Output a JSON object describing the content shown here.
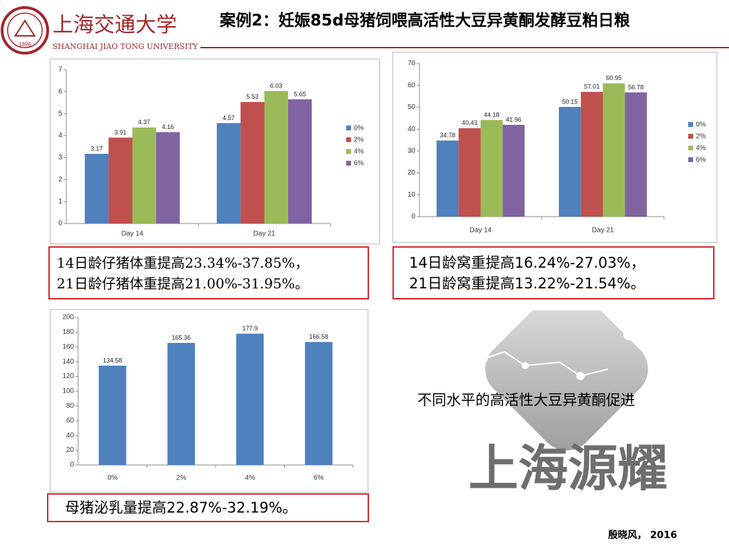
{
  "header": {
    "logo_cn": "上海交通大学",
    "logo_en": "SHANGHAI JIAO TONG UNIVERSITY",
    "logo_year": "1896",
    "title": "案例2：妊娠85d母猪饲喂高活性大豆异黄酮发酵豆粕日粮"
  },
  "chart_data": [
    {
      "type": "bar",
      "categories": [
        "Day 14",
        "Day 21"
      ],
      "series": [
        {
          "name": "0%",
          "color": "#4f81bd",
          "values": [
            3.17,
            4.57
          ]
        },
        {
          "name": "2%",
          "color": "#c0504d",
          "values": [
            3.91,
            5.53
          ]
        },
        {
          "name": "4%",
          "color": "#9bbb59",
          "values": [
            4.37,
            6.03
          ]
        },
        {
          "name": "6%",
          "color": "#8064a2",
          "values": [
            4.16,
            5.65
          ]
        }
      ],
      "ylim": [
        0,
        7
      ],
      "yticks": [
        0,
        1,
        2,
        3,
        4,
        5,
        6,
        7
      ],
      "legend": "right"
    },
    {
      "type": "bar",
      "categories": [
        "Day 14",
        "Day 21"
      ],
      "series": [
        {
          "name": "0%",
          "color": "#4f81bd",
          "values": [
            34.78,
            50.15
          ]
        },
        {
          "name": "2%",
          "color": "#c0504d",
          "values": [
            40.43,
            57.01
          ]
        },
        {
          "name": "4%",
          "color": "#9bbb59",
          "values": [
            44.18,
            60.95
          ]
        },
        {
          "name": "6%",
          "color": "#8064a2",
          "values": [
            41.96,
            56.78
          ]
        }
      ],
      "ylim": [
        0,
        70
      ],
      "yticks": [
        0,
        10,
        20,
        30,
        40,
        50,
        60,
        70
      ],
      "legend": "right"
    },
    {
      "type": "bar",
      "categories": [
        "0%",
        "2%",
        "4%",
        "6%"
      ],
      "values": [
        134.58,
        165.36,
        177.9,
        166.58
      ],
      "color": "#4f81bd",
      "ylim": [
        0,
        200
      ],
      "yticks": [
        0,
        20,
        40,
        60,
        80,
        100,
        120,
        140,
        160,
        180,
        200
      ]
    }
  ],
  "captions": [
    [
      "14日龄仔猪体重提高23.34%-37.85%，",
      "21日龄仔猪体重提高21.00%-31.95%。"
    ],
    [
      "14日龄窝重提高16.24%-27.03%，",
      "21日龄窝重提高13.22%-21.54%。"
    ],
    [
      "母猪泌乳量提高22.87%-32.19%。"
    ]
  ],
  "statement": "不同水平的高活性大豆异黄酮促进",
  "watermark": "上海源耀",
  "footer": "殷晓风， 2016"
}
